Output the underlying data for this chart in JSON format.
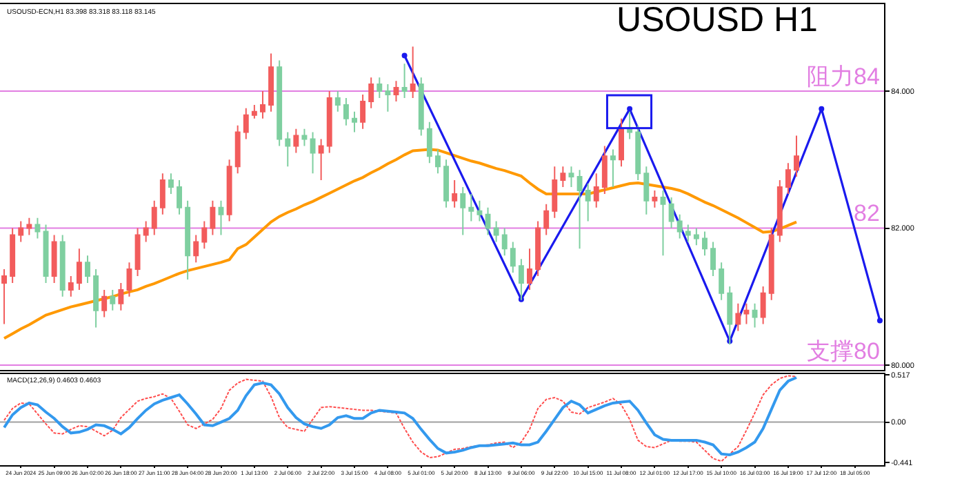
{
  "chart_data": [
    {
      "type": "candlestick",
      "title": "USOUSD H1",
      "annotations": [
        "USOUSD-ECN,H1 83.398 83.318 83.118 83.145"
      ],
      "categories": [
        null,
        null,
        null,
        null,
        null,
        null,
        null,
        null,
        null,
        null,
        null,
        null,
        null,
        null,
        null,
        null,
        null,
        null,
        null,
        null,
        null,
        null,
        null,
        null,
        null,
        null,
        null,
        null,
        null,
        null,
        null,
        null,
        null,
        null,
        null,
        null,
        null,
        null,
        null,
        null,
        null,
        null,
        null,
        null,
        null,
        null,
        null,
        null,
        null,
        null,
        null,
        null,
        null,
        null,
        null,
        null,
        null,
        null,
        null,
        null,
        null,
        null,
        null,
        null,
        null,
        null,
        null,
        null,
        null,
        null,
        null,
        null,
        null,
        null,
        null,
        null,
        null,
        null,
        null,
        null,
        null,
        null,
        null,
        null,
        null,
        null,
        null,
        null,
        null,
        null,
        null,
        null,
        null,
        null,
        null,
        null,
        null,
        null,
        null,
        null,
        null,
        null,
        null,
        null,
        null,
        null
      ],
      "ohlc": [
        [
          81.2,
          81.4,
          80.6,
          81.3
        ],
        [
          81.3,
          82.0,
          81.2,
          81.9
        ],
        [
          81.9,
          82.1,
          81.8,
          82.0
        ],
        [
          82.0,
          82.15,
          81.9,
          82.05
        ],
        [
          82.05,
          82.15,
          81.85,
          81.95
        ],
        [
          81.95,
          82.05,
          81.2,
          81.3
        ],
        [
          81.3,
          81.9,
          81.2,
          81.8
        ],
        [
          81.8,
          81.9,
          81.0,
          81.1
        ],
        [
          81.1,
          81.3,
          81.0,
          81.2
        ],
        [
          81.2,
          81.7,
          81.1,
          81.5
        ],
        [
          81.5,
          81.6,
          81.2,
          81.3
        ],
        [
          81.3,
          81.4,
          80.55,
          80.8
        ],
        [
          80.8,
          81.1,
          80.7,
          81.0
        ],
        [
          81.0,
          81.1,
          80.8,
          80.9
        ],
        [
          80.9,
          81.2,
          80.8,
          81.1
        ],
        [
          81.1,
          81.5,
          81.0,
          81.4
        ],
        [
          81.4,
          82.0,
          81.3,
          81.9
        ],
        [
          81.9,
          82.1,
          81.8,
          82.0
        ],
        [
          82.0,
          82.4,
          81.9,
          82.3
        ],
        [
          82.3,
          82.8,
          82.2,
          82.7
        ],
        [
          82.7,
          82.8,
          82.5,
          82.6
        ],
        [
          82.6,
          82.7,
          82.2,
          82.3
        ],
        [
          82.3,
          82.4,
          81.25,
          81.6
        ],
        [
          81.6,
          81.9,
          81.5,
          81.8
        ],
        [
          81.8,
          82.1,
          81.7,
          82.0
        ],
        [
          82.0,
          82.4,
          81.9,
          82.3
        ],
        [
          82.3,
          82.4,
          81.9,
          82.2
        ],
        [
          82.2,
          83.0,
          82.1,
          82.9
        ],
        [
          82.9,
          83.5,
          82.8,
          83.4
        ],
        [
          83.4,
          83.75,
          83.3,
          83.65
        ],
        [
          83.65,
          83.8,
          83.6,
          83.7
        ],
        [
          83.7,
          84.0,
          83.6,
          83.8
        ],
        [
          83.8,
          84.55,
          83.7,
          84.35
        ],
        [
          84.35,
          84.45,
          83.2,
          83.3
        ],
        [
          83.3,
          83.4,
          82.9,
          83.2
        ],
        [
          83.2,
          83.45,
          83.1,
          83.35
        ],
        [
          83.35,
          83.45,
          83.2,
          83.3
        ],
        [
          83.3,
          83.4,
          82.8,
          83.1
        ],
        [
          83.1,
          83.3,
          82.7,
          83.2
        ],
        [
          83.2,
          84.0,
          83.1,
          83.9
        ],
        [
          83.9,
          84.0,
          83.7,
          83.8
        ],
        [
          83.8,
          83.9,
          83.5,
          83.6
        ],
        [
          83.6,
          83.7,
          83.4,
          83.55
        ],
        [
          83.55,
          83.95,
          83.45,
          83.85
        ],
        [
          83.85,
          84.2,
          83.75,
          84.1
        ],
        [
          84.1,
          84.2,
          83.9,
          84.0
        ],
        [
          84.0,
          84.1,
          83.7,
          83.95
        ],
        [
          83.95,
          84.15,
          83.85,
          84.05
        ],
        [
          84.05,
          84.4,
          83.9,
          84.0
        ],
        [
          84.0,
          84.65,
          83.9,
          84.1
        ],
        [
          84.1,
          84.2,
          83.35,
          83.45
        ],
        [
          83.45,
          83.55,
          82.95,
          83.05
        ],
        [
          83.05,
          83.15,
          82.8,
          82.9
        ],
        [
          82.9,
          83.0,
          82.3,
          82.4
        ],
        [
          82.4,
          82.7,
          82.3,
          82.5
        ],
        [
          82.5,
          82.6,
          81.9,
          82.3
        ],
        [
          82.3,
          82.5,
          82.1,
          82.25
        ],
        [
          82.25,
          82.4,
          82.1,
          82.2
        ],
        [
          82.2,
          82.3,
          81.9,
          82.0
        ],
        [
          82.0,
          82.1,
          81.8,
          81.9
        ],
        [
          81.9,
          82.0,
          81.6,
          81.7
        ],
        [
          81.7,
          81.8,
          81.35,
          81.45
        ],
        [
          81.45,
          81.55,
          80.95,
          81.2
        ],
        [
          81.2,
          81.7,
          81.1,
          81.4
        ],
        [
          81.4,
          82.1,
          81.3,
          82.0
        ],
        [
          82.0,
          82.35,
          81.9,
          82.25
        ],
        [
          82.25,
          82.9,
          82.15,
          82.7
        ],
        [
          82.7,
          82.9,
          82.6,
          82.8
        ],
        [
          82.8,
          82.9,
          82.6,
          82.75
        ],
        [
          82.75,
          82.85,
          81.7,
          82.55
        ],
        [
          82.55,
          82.65,
          82.1,
          82.4
        ],
        [
          82.4,
          82.8,
          82.3,
          82.6
        ],
        [
          82.6,
          83.2,
          82.5,
          83.05
        ],
        [
          83.05,
          83.15,
          82.6,
          83.0
        ],
        [
          83.0,
          83.6,
          82.9,
          83.45
        ],
        [
          83.45,
          83.7,
          83.3,
          83.4
        ],
        [
          83.4,
          83.5,
          82.7,
          82.8
        ],
        [
          82.8,
          82.9,
          82.2,
          82.4
        ],
        [
          82.4,
          82.55,
          82.3,
          82.45
        ],
        [
          82.45,
          82.55,
          81.6,
          82.35
        ],
        [
          82.35,
          82.45,
          82.0,
          82.1
        ],
        [
          82.1,
          82.2,
          81.85,
          81.95
        ],
        [
          81.95,
          82.05,
          81.8,
          81.9
        ],
        [
          81.9,
          82.0,
          81.75,
          81.85
        ],
        [
          81.85,
          81.95,
          81.6,
          81.7
        ],
        [
          81.7,
          81.8,
          81.3,
          81.4
        ],
        [
          81.4,
          81.5,
          80.95,
          81.05
        ],
        [
          81.05,
          81.15,
          80.3,
          80.6
        ],
        [
          80.6,
          80.9,
          80.5,
          80.75
        ],
        [
          80.75,
          80.9,
          80.6,
          80.8
        ],
        [
          80.8,
          80.9,
          80.55,
          80.7
        ],
        [
          80.7,
          81.15,
          80.6,
          81.05
        ],
        [
          81.05,
          82.0,
          80.95,
          81.9
        ],
        [
          81.9,
          82.7,
          81.8,
          82.6
        ],
        [
          82.6,
          82.95,
          82.5,
          82.85
        ],
        [
          82.85,
          83.35,
          82.75,
          83.05
        ],
        null,
        null,
        null,
        null,
        null,
        null,
        null,
        null,
        null,
        null
      ],
      "ylim": [
        79.93,
        85.27
      ],
      "yticks": [
        {
          "value": 80,
          "label": "80.000"
        },
        {
          "value": 82,
          "label": "82.000"
        },
        {
          "value": 84,
          "label": "84.000"
        }
      ],
      "tick_labels": "y",
      "grid": false,
      "series": [
        {
          "type": "line",
          "color": "#ff9900",
          "line_style": "solid",
          "values": [
            80.39,
            80.46,
            80.53,
            80.59,
            80.66,
            80.73,
            80.77,
            80.81,
            80.85,
            80.88,
            80.91,
            80.94,
            80.97,
            81.0,
            81.04,
            81.07,
            81.1,
            81.15,
            81.19,
            81.24,
            81.29,
            81.34,
            81.38,
            81.41,
            81.44,
            81.47,
            81.5,
            81.54,
            81.7,
            81.76,
            81.87,
            81.98,
            82.09,
            82.17,
            82.23,
            82.28,
            82.34,
            82.39,
            82.45,
            82.51,
            82.57,
            82.63,
            82.69,
            82.74,
            82.81,
            82.87,
            82.94,
            83.0,
            83.07,
            83.13,
            83.14,
            83.15,
            83.14,
            83.1,
            83.06,
            83.02,
            82.98,
            82.95,
            82.91,
            82.87,
            82.84,
            82.8,
            82.76,
            82.66,
            82.57,
            82.5,
            82.5,
            82.5,
            82.5,
            82.5,
            82.5,
            82.53,
            82.56,
            82.59,
            82.62,
            82.65,
            82.66,
            82.64,
            82.62,
            82.6,
            82.58,
            82.55,
            82.5,
            82.44,
            82.38,
            82.33,
            82.27,
            82.21,
            82.15,
            82.08,
            82.01,
            81.94,
            81.95,
            81.99,
            82.04,
            82.09,
            null,
            null,
            null,
            null,
            null,
            null,
            null,
            null,
            null,
            null
          ]
        },
        {
          "type": "line",
          "color": "#1a1aee",
          "line_style": "solid",
          "marker": "circle",
          "values": [
            null,
            null,
            null,
            null,
            null,
            null,
            null,
            null,
            null,
            null,
            null,
            null,
            null,
            null,
            null,
            null,
            null,
            null,
            null,
            null,
            null,
            null,
            null,
            null,
            null,
            null,
            null,
            null,
            null,
            null,
            null,
            null,
            null,
            null,
            null,
            null,
            null,
            null,
            null,
            null,
            null,
            null,
            null,
            null,
            null,
            null,
            null,
            null,
            84.52,
            null,
            null,
            null,
            null,
            null,
            null,
            null,
            null,
            null,
            null,
            null,
            null,
            null,
            80.96,
            null,
            null,
            null,
            null,
            null,
            null,
            null,
            null,
            null,
            null,
            null,
            null,
            83.74,
            null,
            null,
            null,
            null,
            null,
            null,
            null,
            null,
            null,
            null,
            null,
            80.35,
            null,
            null,
            null,
            null,
            null,
            null,
            null,
            null,
            null,
            null,
            83.74,
            null,
            null,
            null,
            null,
            null,
            null,
            80.65
          ]
        }
      ],
      "ref_lines": [
        {
          "axis": "y",
          "value": 84,
          "label": "阻力84",
          "color": "#e27ee2"
        },
        {
          "axis": "y",
          "value": 82,
          "label": "82",
          "color": "#e27ee2"
        },
        {
          "axis": "y",
          "value": 80,
          "label": "支撑80",
          "color": "#e27ee2"
        }
      ]
    },
    {
      "type": "line",
      "annotations": [
        "MACD(12,26,9) 0.4603 0.4603"
      ],
      "categories": [
        null,
        null,
        "24 Jun 2024",
        null,
        null,
        null,
        "25 Jun 09:00",
        null,
        null,
        null,
        "26 Jun 02:00",
        null,
        null,
        null,
        "26 Jun 18:00",
        null,
        null,
        null,
        "27 Jun 11:00",
        null,
        null,
        null,
        "28 Jun 04:00",
        null,
        null,
        null,
        "28 Jun 20:00",
        null,
        null,
        null,
        "1 Jul 13:00",
        null,
        null,
        null,
        "2 Jul 06:00",
        null,
        null,
        null,
        "2 Jul 22:00",
        null,
        null,
        null,
        "3 Jul 15:00",
        null,
        null,
        null,
        "4 Jul 08:00",
        null,
        null,
        null,
        "5 Jul 01:00",
        null,
        null,
        null,
        "5 Jul 20:00",
        null,
        null,
        null,
        "8 Jul 13:00",
        null,
        null,
        null,
        "9 Jul 06:00",
        null,
        null,
        null,
        "9 Jul 22:00",
        null,
        null,
        null,
        "10 Jul 15:00",
        null,
        null,
        null,
        "11 Jul 08:00",
        null,
        null,
        null,
        "12 Jul 01:00",
        null,
        null,
        null,
        "12 Jul 17:00",
        null,
        null,
        null,
        "15 Jul 10:00",
        null,
        null,
        null,
        "16 Jul 03:00",
        null,
        null,
        null,
        "16 Jul 19:00",
        null,
        null,
        null,
        "17 Jul 12:00",
        null,
        null,
        null,
        "18 Jul 05:00",
        null,
        null,
        null
      ],
      "ylim": [
        -0.474,
        0.528
      ],
      "yticks": [
        {
          "value": -0.441,
          "label": "-0.441"
        },
        {
          "value": 0,
          "label": "0.00"
        },
        {
          "value": 0.517,
          "label": "0.517"
        }
      ],
      "grid": false,
      "series": [
        {
          "color": "#ff4d4d",
          "line_style": "dotted",
          "values": [
            0.02,
            0.15,
            0.21,
            0.2,
            0.09,
            -0.02,
            -0.12,
            -0.13,
            -0.08,
            -0.04,
            -0.05,
            -0.1,
            -0.15,
            -0.09,
            0.05,
            0.14,
            0.23,
            0.26,
            0.28,
            0.31,
            0.26,
            0.12,
            -0.03,
            -0.07,
            -0.02,
            0.03,
            0.15,
            0.35,
            0.43,
            0.47,
            0.46,
            0.45,
            0.28,
            0.05,
            -0.06,
            -0.08,
            -0.1,
            0.03,
            0.16,
            0.17,
            0.16,
            0.15,
            0.14,
            0.13,
            0.13,
            0.12,
            0.11,
            0.1,
            -0.07,
            -0.22,
            -0.33,
            -0.39,
            -0.38,
            -0.34,
            -0.3,
            -0.29,
            -0.27,
            -0.26,
            -0.25,
            -0.23,
            -0.22,
            -0.28,
            -0.22,
            -0.08,
            0.15,
            0.25,
            0.27,
            0.23,
            0.11,
            0.09,
            0.16,
            0.19,
            0.22,
            0.26,
            0.19,
            0.03,
            -0.2,
            -0.27,
            -0.28,
            -0.24,
            -0.2,
            -0.21,
            -0.21,
            -0.22,
            -0.31,
            -0.4,
            -0.43,
            -0.35,
            -0.27,
            -0.09,
            0.1,
            0.3,
            0.41,
            0.48,
            0.51,
            0.5,
            null,
            null,
            null,
            null,
            null,
            null,
            null,
            null,
            null,
            null
          ]
        },
        {
          "color": "#3399ee",
          "line_style": "solid",
          "values": [
            -0.06,
            0.08,
            0.16,
            0.21,
            0.19,
            0.11,
            0.04,
            -0.05,
            -0.12,
            -0.11,
            -0.08,
            -0.03,
            -0.04,
            -0.08,
            -0.13,
            -0.06,
            0.04,
            0.13,
            0.2,
            0.24,
            0.27,
            0.3,
            0.2,
            0.09,
            -0.03,
            -0.04,
            0.0,
            0.04,
            0.13,
            0.29,
            0.41,
            0.43,
            0.41,
            0.31,
            0.16,
            0.05,
            -0.02,
            -0.05,
            -0.07,
            -0.03,
            0.05,
            0.07,
            0.04,
            0.04,
            0.1,
            0.13,
            0.12,
            0.11,
            0.1,
            0.04,
            -0.08,
            -0.19,
            -0.29,
            -0.34,
            -0.33,
            -0.31,
            -0.28,
            -0.26,
            -0.26,
            -0.25,
            -0.24,
            -0.23,
            -0.25,
            -0.25,
            -0.22,
            -0.1,
            0.03,
            0.16,
            0.23,
            0.19,
            0.1,
            0.14,
            0.18,
            0.21,
            0.22,
            0.23,
            0.13,
            -0.01,
            -0.14,
            -0.19,
            -0.2,
            -0.2,
            -0.2,
            -0.2,
            -0.22,
            -0.25,
            -0.35,
            -0.36,
            -0.33,
            -0.28,
            -0.22,
            -0.07,
            0.14,
            0.35,
            0.45,
            0.49,
            null,
            null,
            null,
            null,
            null,
            null,
            null,
            null,
            null,
            null
          ]
        }
      ],
      "ref_lines": [
        {
          "axis": "y",
          "value": 0,
          "color": "#a0a0a0"
        }
      ]
    }
  ]
}
